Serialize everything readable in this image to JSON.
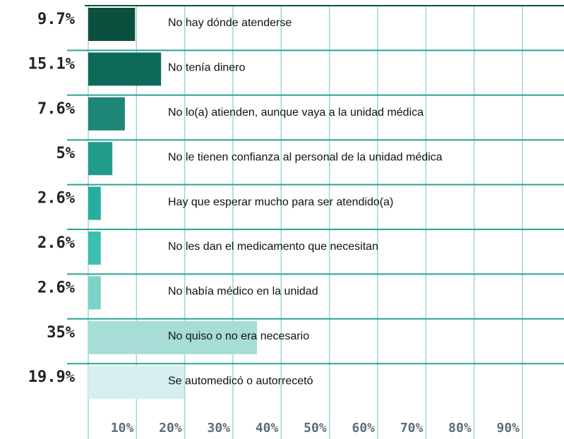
{
  "chart_data": {
    "type": "bar",
    "categories": [
      "No hay dónde atenderse",
      "No tenía dinero",
      "No lo(a) atienden, aunque vaya a la unidad médica",
      "No le tienen confianza al personal de la unidad médica",
      "Hay que esperar mucho para ser atendido(a)",
      "No les dan el medicamento que necesitan",
      "No había médico en la unidad",
      "No quiso o no era necesario",
      "Se automedicó o autorrecetó"
    ],
    "values": [
      9.7,
      15.1,
      7.6,
      5,
      2.6,
      2.6,
      2.6,
      35,
      19.9
    ],
    "value_labels": [
      "9.7%",
      "15.1%",
      "7.6%",
      "5%",
      "2.6%",
      "2.6%",
      "2.6%",
      "35%",
      "19.9%"
    ],
    "colors": [
      "#0b4f3e",
      "#0d6a58",
      "#1e8676",
      "#229b8c",
      "#25ad9e",
      "#3cbfb0",
      "#7dd2c8",
      "#a6ddd6",
      "#d6efee"
    ],
    "xlim": [
      0,
      90
    ],
    "xticks": [
      {
        "value": 10,
        "label": "10%"
      },
      {
        "value": 20,
        "label": "20%"
      },
      {
        "value": 30,
        "label": "30%"
      },
      {
        "value": 40,
        "label": "40%"
      },
      {
        "value": 50,
        "label": "50%"
      },
      {
        "value": 60,
        "label": "60%"
      },
      {
        "value": 70,
        "label": "70%"
      },
      {
        "value": 80,
        "label": "80%"
      },
      {
        "value": 90,
        "label": "90%"
      }
    ],
    "grid": true
  }
}
